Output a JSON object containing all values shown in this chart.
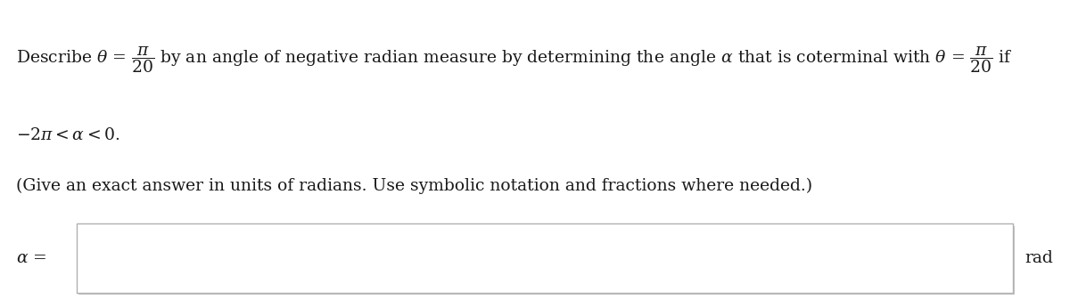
{
  "background_color": "#ffffff",
  "content_bg": "#ffffff",
  "text_color": "#1a1a1a",
  "box_face_color": "#ffffff",
  "box_edge_color": "#b0b0b0",
  "font_size_main": 13.5,
  "alpha_label": "α =",
  "rad_label": "rad",
  "fig_width": 12.0,
  "fig_height": 3.37
}
